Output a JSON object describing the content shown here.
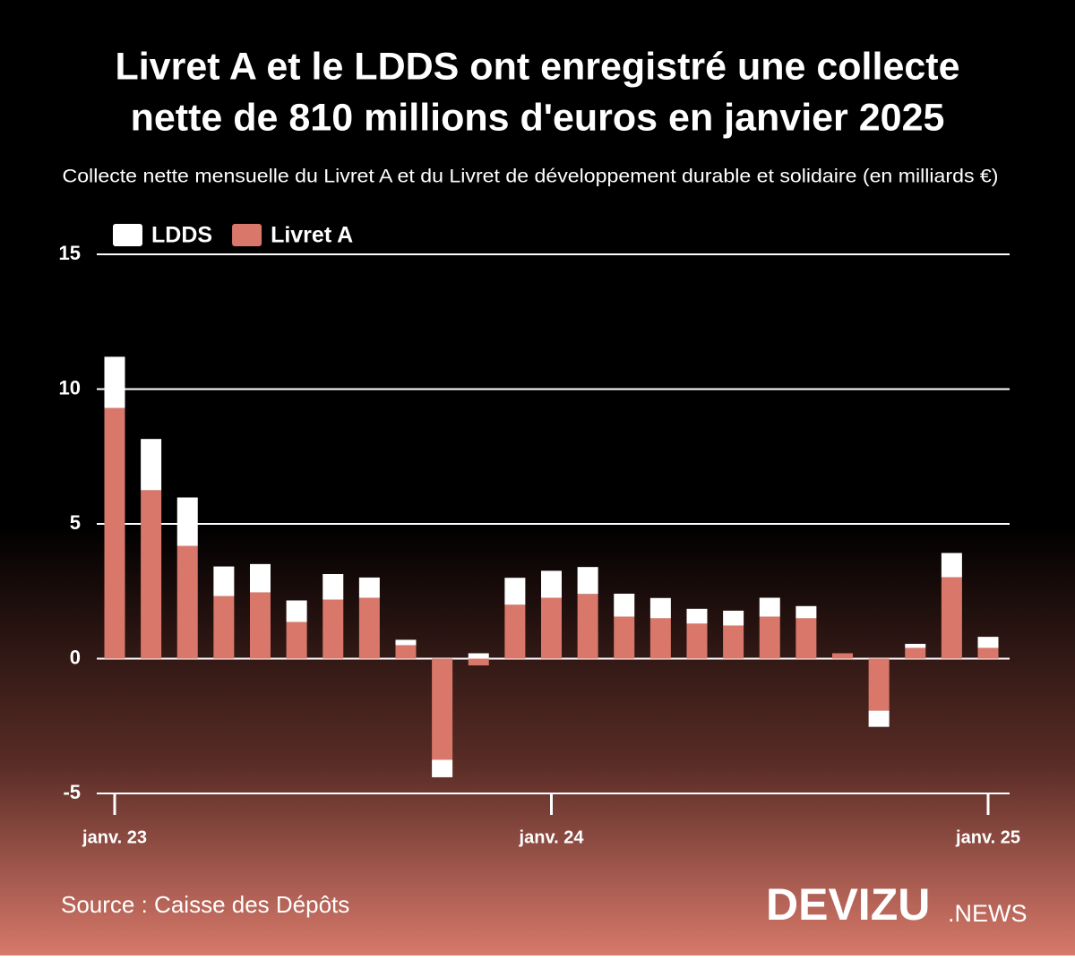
{
  "chart_data": {
    "type": "stacked-bar",
    "title": [
      "Livret A et le LDDS ont enregistré une collecte",
      "nette de 810 millions d'euros en janvier 2025"
    ],
    "subtitle": "Collecte nette mensuelle du Livret A et du Livret de développement durable et solidaire (en milliards €)",
    "categories": [
      "janv. 23",
      null,
      null,
      null,
      null,
      null,
      null,
      null,
      null,
      null,
      null,
      null,
      "janv. 24",
      null,
      null,
      null,
      null,
      null,
      null,
      null,
      null,
      null,
      null,
      null,
      "janv. 25"
    ],
    "series": [
      {
        "name": "LDDS",
        "color": "#ffffff",
        "values": [
          1.9,
          1.9,
          1.8,
          1.1,
          1.05,
          0.8,
          0.95,
          0.75,
          0.2,
          -0.65,
          0.2,
          1.0,
          1.0,
          1.0,
          0.85,
          0.75,
          0.55,
          0.55,
          0.7,
          0.45,
          0,
          -0.6,
          0.15,
          0.9,
          0.41
        ]
      },
      {
        "name": "Livret A",
        "color": "#d9786a",
        "values": [
          9.3,
          6.25,
          4.18,
          2.32,
          2.46,
          1.36,
          2.19,
          2.26,
          0.5,
          -3.75,
          -0.25,
          2.0,
          2.26,
          2.4,
          1.56,
          1.5,
          1.3,
          1.23,
          1.56,
          1.5,
          0.2,
          -1.93,
          0.4,
          3.02,
          0.4
        ]
      }
    ],
    "ylim": [
      -5,
      15
    ],
    "yticks": [
      -5,
      0,
      5,
      10,
      15
    ],
    "grid": true,
    "source": "Source : Caisse des Dépôts"
  },
  "brand": {
    "main": "DEVIZU",
    "suffix": ".NEWS"
  }
}
